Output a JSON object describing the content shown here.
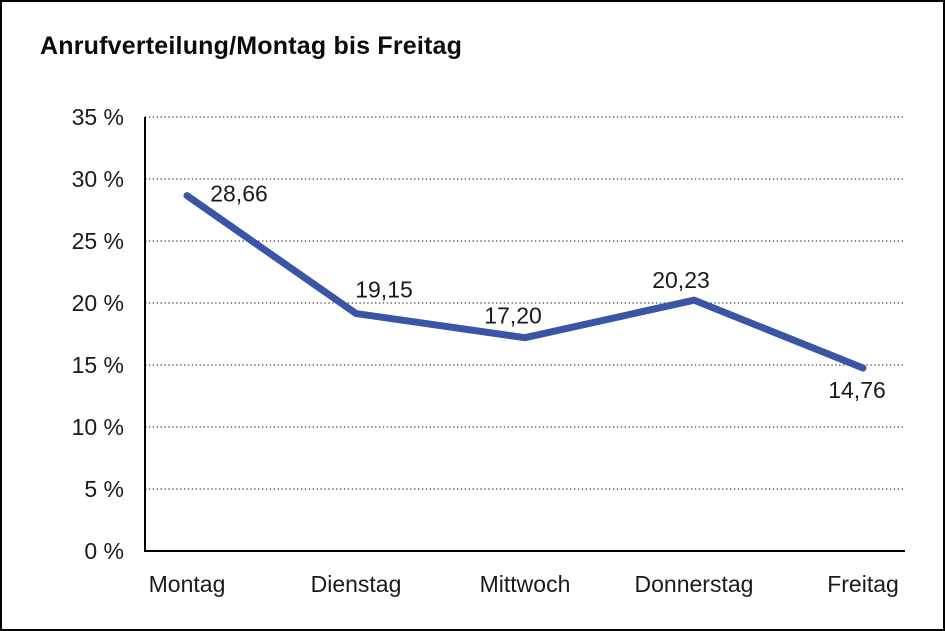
{
  "window": {
    "title": "Anrufverteilung/Montag bis Freitag"
  },
  "chart_data": {
    "type": "line",
    "title": "Anrufverteilung/Montag bis Freitag",
    "categories": [
      "Montag",
      "Dienstag",
      "Mittwoch",
      "Donnerstag",
      "Freitag"
    ],
    "series": [
      {
        "name": "Anrufverteilung",
        "values": [
          28.66,
          19.15,
          17.2,
          20.23,
          14.76
        ],
        "point_labels": [
          "28,66",
          "19,15",
          "17,20",
          "20,23",
          "14,76"
        ]
      }
    ],
    "xlabel": "",
    "ylabel": "",
    "ylim": [
      0,
      35
    ],
    "ytick_step": 5,
    "ytick_suffix": " %",
    "ytick_labels": [
      "0 %",
      "5 %",
      "10 %",
      "15 %",
      "20 %",
      "25 %",
      "30 %",
      "35 %"
    ],
    "grid": "horizontal-dotted",
    "legend": "none",
    "colors": {
      "line": "#3A55A5",
      "axis": "#000000",
      "grid_dots": "#3d3d3d",
      "text": "#1a1a1a",
      "background": "#ffffff",
      "frame_border": "#000000"
    }
  }
}
